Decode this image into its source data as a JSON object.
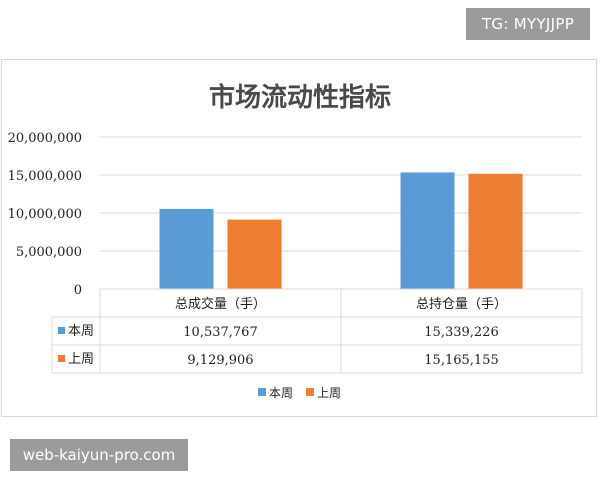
{
  "watermarks": {
    "telegram": "TG: MYYJJPP",
    "site": "web-kaiyun-pro.com"
  },
  "colors": {
    "current_week": "#5b9bd5",
    "last_week": "#ed7d31",
    "grid": "#d9d9d9"
  },
  "chart_data": {
    "type": "bar",
    "title": "市场流动性指标",
    "xlabel": "",
    "ylabel": "",
    "categories": [
      "总成交量（手）",
      "总持仓量（手）"
    ],
    "series": [
      {
        "name": "本周",
        "values": [
          10537767,
          15339226
        ],
        "labels": [
          "10,537,767",
          "15,339,226"
        ],
        "color": "#5b9bd5"
      },
      {
        "name": "上周",
        "values": [
          9129906,
          15165155
        ],
        "labels": [
          "9,129,906",
          "15,165,155"
        ],
        "color": "#ed7d31"
      }
    ],
    "ylim": [
      0,
      20000000
    ],
    "yticks": [
      0,
      5000000,
      10000000,
      15000000,
      20000000
    ],
    "ytick_labels": [
      "0",
      "5,000,000",
      "10,000,000",
      "15,000,000",
      "20,000,000"
    ],
    "grid": true,
    "legend": "bottom-center",
    "data_table": true
  }
}
